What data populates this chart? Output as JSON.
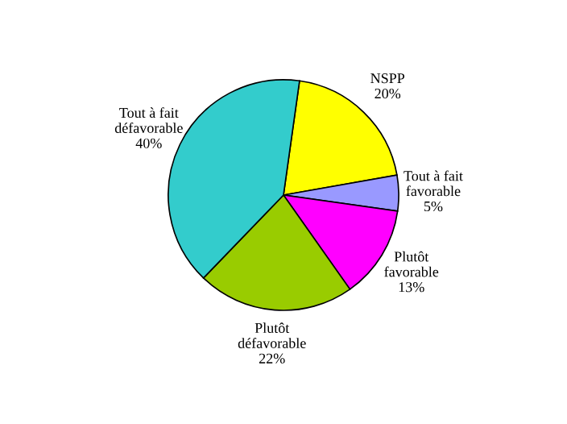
{
  "chart_data": {
    "type": "pie",
    "categories": [
      "NSPP",
      "Tout à fait\nfavorable",
      "Plutôt\nfavorable",
      "Plutôt\ndéfavorable",
      "Tout à fait\ndéfavorable"
    ],
    "values": [
      20,
      5,
      13,
      22,
      40
    ],
    "value_labels": [
      "20%",
      "5%",
      "13%",
      "22%",
      "40%"
    ],
    "colors": [
      "#ffff00",
      "#9999ff",
      "#ff00ff",
      "#99cc00",
      "#33cccc"
    ],
    "legend": false
  }
}
